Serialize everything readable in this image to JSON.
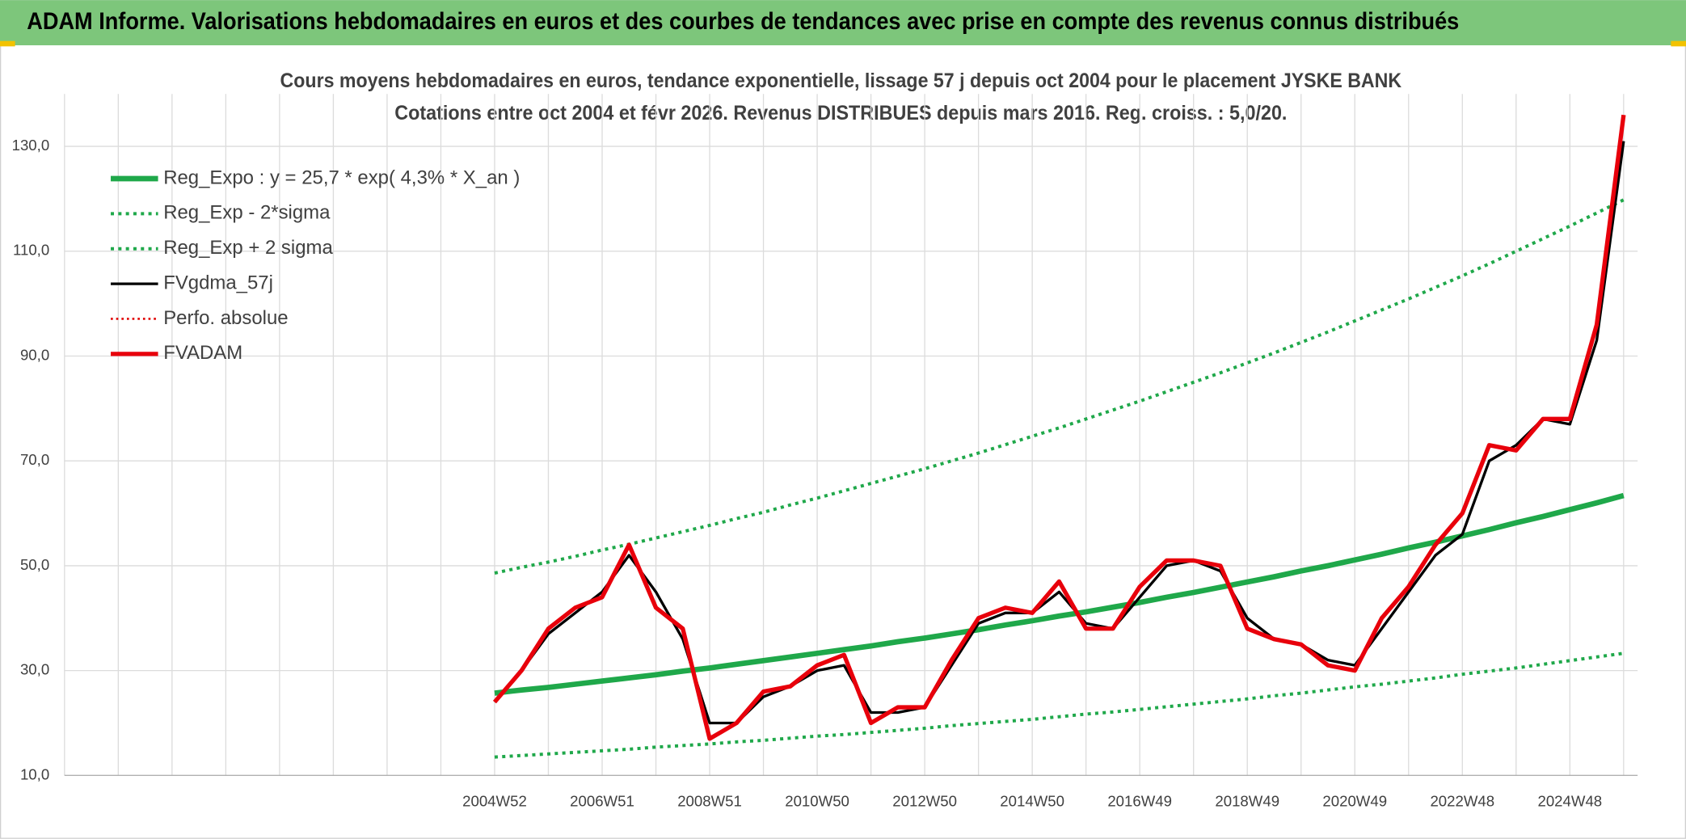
{
  "header": {
    "title": "ADAM Informe. Valorisations hebdomadaires en euros et des courbes de tendances avec prise en compte des revenus connus distribués"
  },
  "chart_data": {
    "type": "line",
    "title": "Cours moyens hebdomadaires en euros, tendance exponentielle, lissage 57 j depuis oct 2004 pour le placement JYSKE BANK",
    "subtitle": "Cotations entre oct 2004 et févr 2026. Revenus DISTRIBUES depuis mars 2016. Reg. croiss. : 5,0/20.",
    "categories": [
      null,
      null,
      null,
      null,
      null,
      null,
      null,
      null,
      null,
      null,
      null,
      null,
      null,
      null,
      null,
      null,
      "2004W52",
      null,
      null,
      null,
      "2006W51",
      null,
      null,
      null,
      "2008W51",
      null,
      null,
      null,
      "2010W50",
      null,
      null,
      null,
      "2012W50",
      null,
      null,
      null,
      "2014W50",
      null,
      null,
      null,
      "2016W49",
      null,
      null,
      null,
      "2018W49",
      null,
      null,
      null,
      "2020W49",
      null,
      null,
      null,
      "2022W48",
      null,
      null,
      null,
      "2024W48",
      null,
      null
    ],
    "ylim": [
      10,
      140
    ],
    "yticks": [
      {
        "value": 10,
        "label": "10,0"
      },
      {
        "value": 30,
        "label": "30,0"
      },
      {
        "value": 50,
        "label": "50,0"
      },
      {
        "value": 70,
        "label": "70,0"
      },
      {
        "value": 90,
        "label": "90,0"
      },
      {
        "value": 110,
        "label": "110,0"
      },
      {
        "value": 130,
        "label": "130,0"
      }
    ],
    "grid": true,
    "legend": "upper left",
    "series": [
      {
        "name": "Reg_Expo : y = 25,7 * exp( 4,3% *  X_an )",
        "color": "#1fa84a",
        "line_style": "solid",
        "width": 5,
        "values": [
          null,
          null,
          null,
          null,
          null,
          null,
          null,
          null,
          null,
          null,
          null,
          null,
          null,
          null,
          null,
          null,
          25.7,
          26.3,
          26.8,
          27.4,
          28.0,
          28.6,
          29.2,
          29.9,
          30.5,
          31.2,
          31.9,
          32.6,
          33.3,
          34.0,
          34.7,
          35.5,
          36.2,
          37.0,
          37.8,
          38.7,
          39.5,
          40.4,
          41.2,
          42.1,
          43.0,
          44.0,
          44.9,
          45.9,
          46.9,
          47.9,
          49.0,
          50.0,
          51.1,
          52.2,
          53.4,
          54.5,
          55.7,
          56.9,
          58.2,
          59.4,
          60.7,
          62.0,
          63.4
        ]
      },
      {
        "name": "Reg_Exp - 2*sigma",
        "color": "#1fa84a",
        "line_style": "dotted",
        "width": 3,
        "values": [
          null,
          null,
          null,
          null,
          null,
          null,
          null,
          null,
          null,
          null,
          null,
          null,
          null,
          null,
          null,
          null,
          13.5,
          13.8,
          14.1,
          14.4,
          14.7,
          15.0,
          15.4,
          15.7,
          16.0,
          16.4,
          16.7,
          17.1,
          17.5,
          17.8,
          18.2,
          18.6,
          19.0,
          19.5,
          19.9,
          20.3,
          20.7,
          21.2,
          21.7,
          22.1,
          22.6,
          23.1,
          23.6,
          24.1,
          24.6,
          25.2,
          25.7,
          26.3,
          26.9,
          27.4,
          28.0,
          28.6,
          29.3,
          29.9,
          30.5,
          31.2,
          31.9,
          32.6,
          33.3
        ]
      },
      {
        "name": "Reg_Exp + 2 sigma",
        "color": "#1fa84a",
        "line_style": "dotted",
        "width": 3,
        "values": [
          null,
          null,
          null,
          null,
          null,
          null,
          null,
          null,
          null,
          null,
          null,
          null,
          null,
          null,
          null,
          null,
          48.6,
          49.7,
          50.7,
          51.8,
          53.0,
          54.1,
          55.3,
          56.5,
          57.7,
          59.0,
          60.2,
          61.6,
          62.9,
          64.3,
          65.7,
          67.1,
          68.5,
          70.0,
          71.5,
          73.1,
          74.7,
          76.3,
          78.0,
          79.7,
          81.4,
          83.2,
          85.0,
          86.8,
          88.7,
          90.6,
          92.6,
          94.6,
          96.7,
          98.8,
          100.9,
          103.1,
          105.3,
          107.6,
          110.0,
          112.4,
          114.8,
          117.3,
          119.8
        ]
      },
      {
        "name": "FVgdma_57j",
        "color": "#000000",
        "line_style": "solid",
        "width": 2.5,
        "values": [
          null,
          null,
          null,
          null,
          null,
          null,
          null,
          null,
          null,
          null,
          null,
          null,
          null,
          null,
          null,
          null,
          24,
          30,
          37,
          41,
          45,
          52,
          45,
          36,
          20,
          20,
          25,
          27,
          30,
          31,
          22,
          22,
          23,
          31,
          39,
          41,
          41,
          45,
          39,
          38,
          44,
          50,
          51,
          49,
          40,
          36,
          35,
          32,
          31,
          38,
          45,
          52,
          56,
          70,
          73,
          78,
          77,
          93,
          131
        ]
      },
      {
        "name": "Perfo. absolue",
        "color": "#e00000",
        "line_style": "dotted",
        "width": 2,
        "values": [
          null,
          null,
          null,
          null,
          null,
          null,
          null,
          null,
          null,
          null,
          null,
          null,
          null,
          null,
          null,
          null,
          null,
          null,
          null,
          null,
          null,
          null,
          null,
          null,
          null,
          null,
          null,
          null,
          null,
          null,
          null,
          null,
          null,
          null,
          null,
          null,
          null,
          null,
          null,
          null,
          null,
          null,
          null,
          null,
          null,
          null,
          null,
          null,
          null,
          null,
          null,
          null,
          null,
          null,
          null,
          null,
          null,
          null,
          null
        ]
      },
      {
        "name": "FVADAM",
        "color": "#e8000b",
        "line_style": "solid",
        "width": 4,
        "values": [
          null,
          null,
          null,
          null,
          null,
          null,
          null,
          null,
          null,
          null,
          null,
          null,
          null,
          null,
          null,
          null,
          24,
          30,
          38,
          42,
          44,
          54,
          42,
          38,
          17,
          20,
          26,
          27,
          31,
          33,
          20,
          23,
          23,
          32,
          40,
          42,
          41,
          47,
          38,
          38,
          46,
          51,
          51,
          50,
          38,
          36,
          35,
          31,
          30,
          40,
          46,
          54,
          60,
          73,
          72,
          78,
          78,
          96,
          136
        ]
      }
    ]
  }
}
